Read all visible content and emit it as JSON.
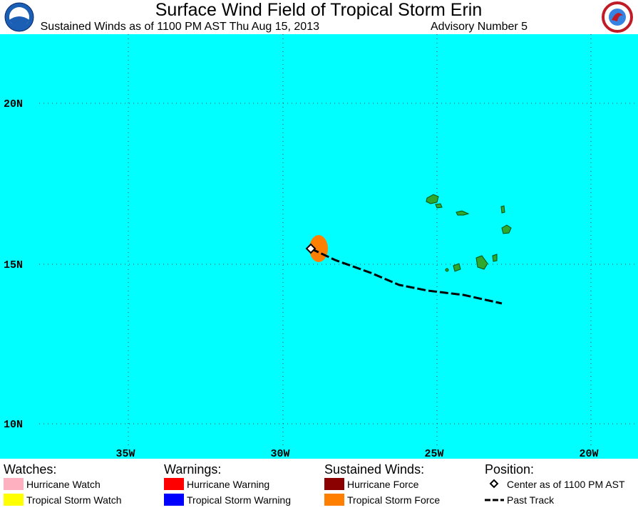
{
  "header": {
    "title": "Surface Wind Field of Tropical Storm Erin",
    "subtitle": "Sustained Winds as of 1100 PM AST Thu Aug 15, 2013",
    "advisory": "Advisory Number 5"
  },
  "map": {
    "latitude_labels": [
      "20N",
      "15N",
      "10N"
    ],
    "longitude_labels": [
      "35W",
      "30W",
      "25W",
      "20W"
    ]
  },
  "legend": {
    "watches": {
      "title": "Watches:",
      "items": [
        "Hurricane Watch",
        "Tropical Storm Watch"
      ]
    },
    "warnings": {
      "title": "Warnings:",
      "items": [
        "Hurricane Warning",
        "Tropical Storm Warning"
      ]
    },
    "winds": {
      "title": "Sustained Winds:",
      "items": [
        "Hurricane Force",
        "Tropical Storm Force"
      ]
    },
    "position": {
      "title": "Position:",
      "items": [
        "Center as of 1100 PM AST",
        "Past Track"
      ]
    }
  }
}
